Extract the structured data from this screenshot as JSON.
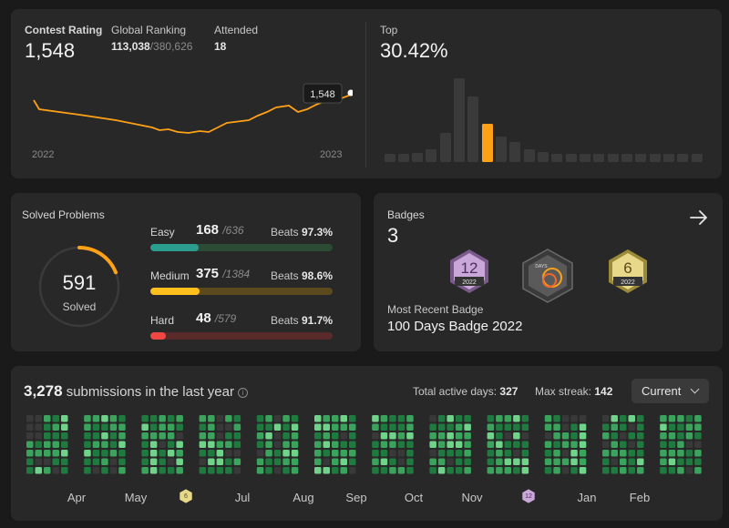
{
  "contest": {
    "rating_label": "Contest Rating",
    "rating_value": "1,548",
    "global_label": "Global Ranking",
    "global_rank": "113,038",
    "global_total": "/380,626",
    "attended_label": "Attended",
    "attended_value": "18",
    "top_label": "Top",
    "top_value": "30.42%",
    "year_start": "2022",
    "year_end": "2023",
    "tooltip": "1,548",
    "line_color": "#ffa116"
  },
  "solved": {
    "title": "Solved Problems",
    "total": "591",
    "total_label": "Solved",
    "total_fraction": 0.19,
    "beats_label": "Beats",
    "items": [
      {
        "name": "Easy",
        "count": "168",
        "total": "/636",
        "beats": "97.3%",
        "fraction": 0.264,
        "color": "#2cbb5d",
        "fill": "#2a9d8f",
        "track": "#2c4a34"
      },
      {
        "name": "Medium",
        "count": "375",
        "total": "/1384",
        "beats": "98.6%",
        "fraction": 0.271,
        "color": "#ffc01e",
        "fill": "#ffc01e",
        "track": "#5a4a1e"
      },
      {
        "name": "Hard",
        "count": "48",
        "total": "/579",
        "beats": "91.7%",
        "fraction": 0.083,
        "color": "#ef4743",
        "fill": "#ef4743",
        "track": "#5a2a2a"
      }
    ]
  },
  "badges": {
    "title": "Badges",
    "count": "3",
    "recent_label": "Most Recent Badge",
    "recent_value": "100 Days Badge 2022",
    "items": [
      {
        "icon": "december-badge-icon",
        "num": "12",
        "year": "2022",
        "color": "#c9a7d9"
      },
      {
        "icon": "hundred-days-badge-icon",
        "text": "DAYS",
        "color": "#5a5a5a"
      },
      {
        "icon": "june-badge-icon",
        "num": "6",
        "year": "2022",
        "color": "#e8d98a"
      }
    ]
  },
  "submissions": {
    "count": "3,278",
    "label": "submissions in the last year",
    "active_label": "Total active days:",
    "active_value": "327",
    "streak_label": "Max streak:",
    "streak_value": "142",
    "dropdown_value": "Current",
    "months": [
      "Apr",
      "May",
      "Jul",
      "Aug",
      "Sep",
      "Oct",
      "Nov",
      "Jan",
      "Feb"
    ],
    "colors": {
      "empty": "#393939",
      "l1": "#0e4429",
      "l2": "#1f7a3f",
      "l3": "#3aa35c",
      "l4": "#6fd48a"
    }
  }
}
